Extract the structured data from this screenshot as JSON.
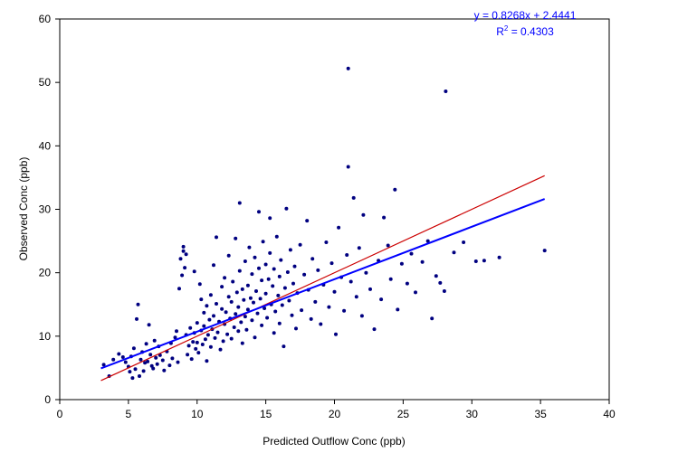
{
  "chart_data": {
    "type": "scatter",
    "title": "",
    "xlabel": "Predicted Outflow Conc (ppb)",
    "ylabel": "Observed Conc (ppb)",
    "xlim": [
      0,
      40
    ],
    "ylim": [
      0,
      60
    ],
    "xticks": [
      "0",
      "5",
      "10",
      "15",
      "20",
      "25",
      "30",
      "35",
      "40"
    ],
    "yticks": [
      "0",
      "10",
      "20",
      "30",
      "40",
      "50",
      "60"
    ],
    "grid": false,
    "legend": "none",
    "colors": {
      "points": "#000080",
      "fit_line": "#0000ff",
      "one_to_one": "#cc0000",
      "equation_text": "#0000ff"
    },
    "annotation": {
      "equation": "y = 0.8268x + 2.4441",
      "r2_prefix": "R",
      "r2_sup": "2",
      "r2_value": " = 0.4303"
    },
    "fit_line": {
      "slope": 0.8268,
      "intercept": 2.4441,
      "x_range": [
        3,
        35.3
      ]
    },
    "one_to_one_line": {
      "x_range": [
        3,
        35.3
      ],
      "y_range": [
        3,
        35.3
      ]
    },
    "points": [
      [
        3.2,
        5.5
      ],
      [
        3.6,
        3.7
      ],
      [
        3.9,
        6.3
      ],
      [
        4.3,
        7.2
      ],
      [
        4.6,
        6.7
      ],
      [
        4.8,
        5.9
      ],
      [
        5.0,
        5.2
      ],
      [
        5.1,
        4.4
      ],
      [
        5.2,
        6.8
      ],
      [
        5.3,
        3.4
      ],
      [
        5.4,
        8.1
      ],
      [
        5.5,
        4.8
      ],
      [
        5.6,
        12.7
      ],
      [
        5.7,
        15.0
      ],
      [
        5.8,
        3.7
      ],
      [
        5.9,
        6.3
      ],
      [
        6.0,
        7.5
      ],
      [
        6.1,
        4.5
      ],
      [
        6.2,
        5.8
      ],
      [
        6.3,
        8.8
      ],
      [
        6.4,
        6.0
      ],
      [
        6.5,
        11.8
      ],
      [
        6.6,
        7.1
      ],
      [
        6.7,
        5.3
      ],
      [
        6.8,
        4.9
      ],
      [
        6.9,
        9.3
      ],
      [
        7.0,
        6.6
      ],
      [
        7.1,
        5.6
      ],
      [
        7.2,
        8.4
      ],
      [
        7.3,
        7.0
      ],
      [
        7.5,
        6.2
      ],
      [
        7.6,
        4.6
      ],
      [
        7.8,
        7.6
      ],
      [
        8.0,
        5.4
      ],
      [
        8.1,
        8.9
      ],
      [
        8.2,
        6.5
      ],
      [
        8.4,
        9.8
      ],
      [
        8.5,
        10.8
      ],
      [
        8.6,
        5.9
      ],
      [
        8.7,
        17.5
      ],
      [
        8.8,
        22.2
      ],
      [
        8.9,
        19.6
      ],
      [
        9.0,
        23.4
      ],
      [
        9.0,
        24.1
      ],
      [
        9.1,
        20.8
      ],
      [
        9.2,
        22.9
      ],
      [
        9.2,
        10.2
      ],
      [
        9.3,
        7.1
      ],
      [
        9.4,
        8.5
      ],
      [
        9.5,
        11.3
      ],
      [
        9.6,
        6.4
      ],
      [
        9.7,
        9.1
      ],
      [
        9.8,
        10.5
      ],
      [
        9.8,
        20.2
      ],
      [
        9.9,
        8.0
      ],
      [
        10.0,
        12.1
      ],
      [
        10.0,
        9.0
      ],
      [
        10.1,
        7.4
      ],
      [
        10.2,
        18.2
      ],
      [
        10.3,
        10.9
      ],
      [
        10.3,
        15.8
      ],
      [
        10.4,
        8.7
      ],
      [
        10.5,
        11.6
      ],
      [
        10.5,
        13.7
      ],
      [
        10.6,
        9.5
      ],
      [
        10.7,
        6.1
      ],
      [
        10.7,
        14.8
      ],
      [
        10.8,
        10.2
      ],
      [
        10.9,
        12.6
      ],
      [
        11.0,
        16.5
      ],
      [
        11.0,
        8.3
      ],
      [
        11.1,
        11.1
      ],
      [
        11.2,
        21.2
      ],
      [
        11.2,
        13.2
      ],
      [
        11.3,
        9.7
      ],
      [
        11.4,
        25.6
      ],
      [
        11.4,
        15.1
      ],
      [
        11.5,
        10.6
      ],
      [
        11.6,
        12.3
      ],
      [
        11.7,
        7.9
      ],
      [
        11.8,
        17.8
      ],
      [
        11.8,
        14.3
      ],
      [
        11.9,
        9.2
      ],
      [
        12.0,
        11.9
      ],
      [
        12.0,
        19.2
      ],
      [
        12.1,
        13.8
      ],
      [
        12.2,
        10.3
      ],
      [
        12.3,
        16.2
      ],
      [
        12.3,
        22.7
      ],
      [
        12.4,
        12.8
      ],
      [
        12.5,
        9.6
      ],
      [
        12.5,
        15.4
      ],
      [
        12.6,
        18.6
      ],
      [
        12.7,
        11.4
      ],
      [
        12.8,
        13.5
      ],
      [
        12.8,
        25.4
      ],
      [
        12.9,
        16.9
      ],
      [
        13.0,
        10.8
      ],
      [
        13.0,
        14.6
      ],
      [
        13.1,
        31.0
      ],
      [
        13.1,
        20.3
      ],
      [
        13.2,
        12.2
      ],
      [
        13.3,
        17.4
      ],
      [
        13.3,
        8.9
      ],
      [
        13.4,
        15.7
      ],
      [
        13.5,
        13.1
      ],
      [
        13.5,
        21.8
      ],
      [
        13.6,
        11.0
      ],
      [
        13.7,
        18.0
      ],
      [
        13.7,
        14.2
      ],
      [
        13.8,
        24.0
      ],
      [
        13.9,
        16.0
      ],
      [
        14.0,
        12.5
      ],
      [
        14.0,
        19.8
      ],
      [
        14.1,
        15.3
      ],
      [
        14.2,
        9.8
      ],
      [
        14.2,
        22.4
      ],
      [
        14.3,
        17.1
      ],
      [
        14.4,
        13.6
      ],
      [
        14.5,
        20.7
      ],
      [
        14.5,
        29.6
      ],
      [
        14.6,
        15.9
      ],
      [
        14.7,
        11.7
      ],
      [
        14.7,
        18.8
      ],
      [
        14.8,
        24.9
      ],
      [
        14.9,
        14.4
      ],
      [
        15.0,
        21.3
      ],
      [
        15.0,
        16.7
      ],
      [
        15.1,
        12.9
      ],
      [
        15.2,
        19.0
      ],
      [
        15.3,
        28.6
      ],
      [
        15.3,
        23.1
      ],
      [
        15.4,
        15.0
      ],
      [
        15.5,
        17.9
      ],
      [
        15.6,
        10.5
      ],
      [
        15.6,
        20.6
      ],
      [
        15.7,
        13.9
      ],
      [
        15.8,
        25.7
      ],
      [
        15.9,
        16.4
      ],
      [
        16.0,
        19.4
      ],
      [
        16.0,
        12.0
      ],
      [
        16.1,
        22.0
      ],
      [
        16.2,
        14.9
      ],
      [
        16.3,
        8.4
      ],
      [
        16.4,
        17.6
      ],
      [
        16.5,
        30.1
      ],
      [
        16.6,
        20.1
      ],
      [
        16.7,
        15.6
      ],
      [
        16.8,
        23.6
      ],
      [
        16.9,
        13.3
      ],
      [
        17.0,
        18.3
      ],
      [
        17.1,
        21.0
      ],
      [
        17.2,
        11.2
      ],
      [
        17.3,
        16.8
      ],
      [
        17.5,
        24.4
      ],
      [
        17.6,
        14.1
      ],
      [
        17.8,
        19.7
      ],
      [
        18.0,
        28.2
      ],
      [
        18.1,
        17.3
      ],
      [
        18.3,
        12.7
      ],
      [
        18.4,
        22.2
      ],
      [
        18.6,
        15.4
      ],
      [
        18.8,
        20.4
      ],
      [
        19.0,
        11.9
      ],
      [
        19.2,
        18.1
      ],
      [
        19.4,
        24.8
      ],
      [
        19.6,
        14.6
      ],
      [
        19.8,
        21.5
      ],
      [
        20.0,
        17.0
      ],
      [
        20.1,
        10.3
      ],
      [
        20.3,
        27.1
      ],
      [
        20.5,
        19.3
      ],
      [
        20.7,
        14.0
      ],
      [
        20.9,
        22.8
      ],
      [
        21.0,
        52.2
      ],
      [
        21.0,
        36.7
      ],
      [
        21.2,
        18.6
      ],
      [
        21.4,
        31.8
      ],
      [
        21.6,
        16.2
      ],
      [
        21.8,
        23.9
      ],
      [
        22.0,
        13.2
      ],
      [
        22.1,
        29.1
      ],
      [
        22.3,
        20.0
      ],
      [
        22.6,
        17.4
      ],
      [
        22.9,
        11.1
      ],
      [
        23.2,
        21.9
      ],
      [
        23.4,
        15.8
      ],
      [
        23.6,
        28.7
      ],
      [
        23.9,
        24.3
      ],
      [
        24.1,
        19.0
      ],
      [
        24.4,
        33.1
      ],
      [
        24.6,
        14.2
      ],
      [
        24.9,
        21.4
      ],
      [
        25.3,
        18.3
      ],
      [
        25.6,
        23.0
      ],
      [
        25.9,
        16.9
      ],
      [
        26.4,
        21.7
      ],
      [
        26.8,
        25.0
      ],
      [
        27.1,
        12.8
      ],
      [
        27.4,
        19.5
      ],
      [
        27.7,
        18.4
      ],
      [
        28.0,
        17.1
      ],
      [
        28.1,
        48.6
      ],
      [
        28.7,
        23.2
      ],
      [
        29.4,
        24.8
      ],
      [
        30.3,
        21.8
      ],
      [
        30.9,
        21.9
      ],
      [
        32.0,
        22.4
      ],
      [
        35.3,
        23.5
      ]
    ]
  }
}
